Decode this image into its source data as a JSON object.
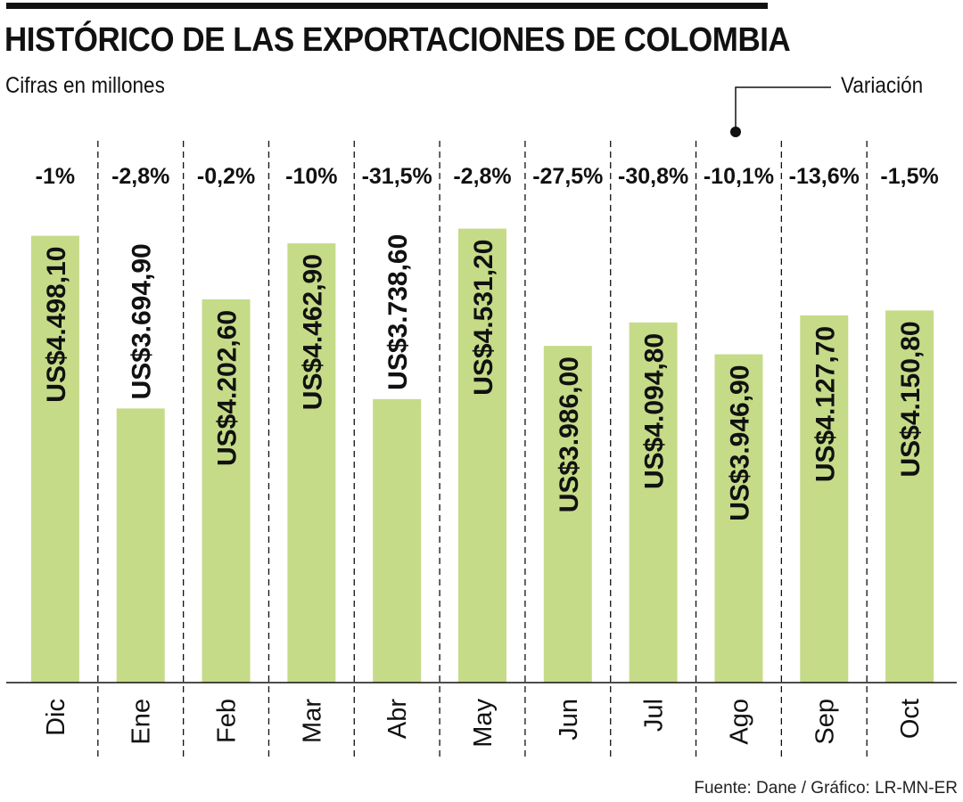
{
  "header": {
    "title": "HISTÓRICO DE LAS EXPORTACIONES DE COLOMBIA",
    "subtitle": "Cifras en millones",
    "variation_label": "Variación"
  },
  "footer": {
    "source": "Fuente: Dane / Gráfico: LR-MN-ER"
  },
  "colors": {
    "bar": "#c5db88",
    "text": "#111111",
    "rule": "#111111"
  },
  "chart_data": {
    "type": "bar",
    "title": "HISTÓRICO DE LAS EXPORTACIONES DE COLOMBIA",
    "subtitle": "Cifras en millones",
    "categories": [
      "Dic",
      "Ene",
      "Feb",
      "Mar",
      "Abr",
      "May",
      "Jun",
      "Jul",
      "Ago",
      "Sep",
      "Oct"
    ],
    "values": [
      4498.1,
      3694.9,
      4202.6,
      4462.9,
      3738.6,
      4531.2,
      3986.0,
      4094.8,
      3946.9,
      4127.7,
      4150.8
    ],
    "value_labels": [
      "US$4.498,10",
      "US$3.694,90",
      "US$4.202,60",
      "US$4.462,90",
      "US$3.738,60",
      "US$4.531,20",
      "US$3.986,00",
      "US$4.094,80",
      "US$3.946,90",
      "US$4.127,70",
      "US$4.150,80"
    ],
    "variation_labels": [
      "-1%",
      "-2,8%",
      "-0,2%",
      "-10%",
      "-31,5%",
      "-2,8%",
      "-27,5%",
      "-30,8%",
      "-10,1%",
      "-13,6%",
      "-1,5%"
    ],
    "ylim": [
      2420,
      4600
    ],
    "grid": false,
    "legend": "none"
  }
}
